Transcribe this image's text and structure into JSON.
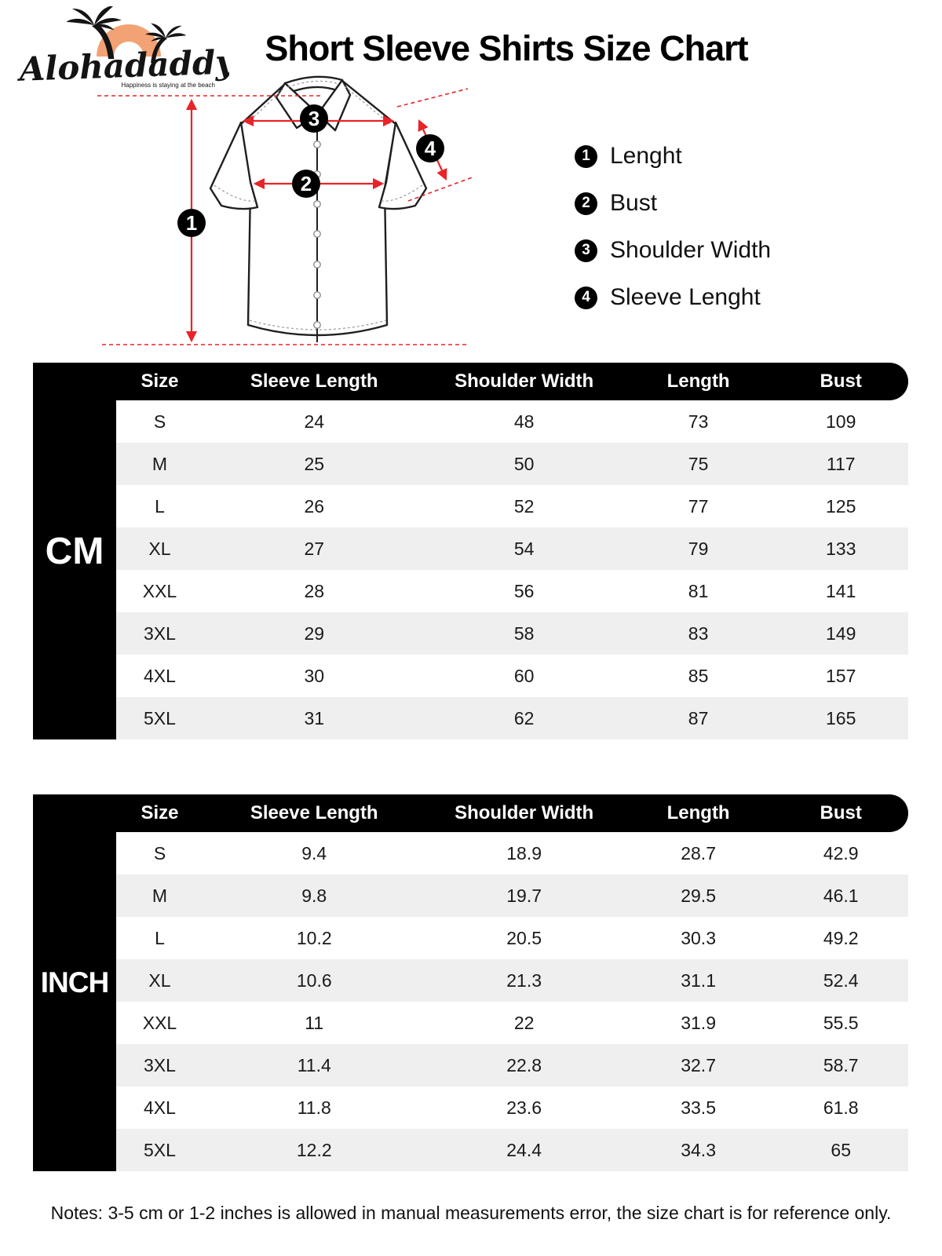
{
  "logo": {
    "brand": "Alohadaddy",
    "tagline": "Happiness is staying at the beach"
  },
  "page": {
    "title": "Short Sleeve Shirts Size Chart",
    "notes": "Notes: 3-5 cm or 1-2 inches is allowed in manual measurements error, the size chart is for reference only."
  },
  "diagram": {
    "markers": {
      "m1": "1",
      "m2": "2",
      "m3": "3",
      "m4": "4"
    }
  },
  "legend": {
    "items": [
      {
        "num": "1",
        "label": "Lenght"
      },
      {
        "num": "2",
        "label": "Bust"
      },
      {
        "num": "3",
        "label": "Shoulder Width"
      },
      {
        "num": "4",
        "label": "Sleeve Lenght"
      }
    ]
  },
  "tables": [
    {
      "unit": "CM",
      "columns": [
        "Size",
        "Sleeve Length",
        "Shoulder Width",
        "Length",
        "Bust"
      ],
      "rows": [
        [
          "S",
          "24",
          "48",
          "73",
          "109"
        ],
        [
          "M",
          "25",
          "50",
          "75",
          "117"
        ],
        [
          "L",
          "26",
          "52",
          "77",
          "125"
        ],
        [
          "XL",
          "27",
          "54",
          "79",
          "133"
        ],
        [
          "XXL",
          "28",
          "56",
          "81",
          "141"
        ],
        [
          "3XL",
          "29",
          "58",
          "83",
          "149"
        ],
        [
          "4XL",
          "30",
          "60",
          "85",
          "157"
        ],
        [
          "5XL",
          "31",
          "62",
          "87",
          "165"
        ]
      ]
    },
    {
      "unit": "INCH",
      "columns": [
        "Size",
        "Sleeve Length",
        "Shoulder Width",
        "Length",
        "Bust"
      ],
      "rows": [
        [
          "S",
          "9.4",
          "18.9",
          "28.7",
          "42.9"
        ],
        [
          "M",
          "9.8",
          "19.7",
          "29.5",
          "46.1"
        ],
        [
          "L",
          "10.2",
          "20.5",
          "30.3",
          "49.2"
        ],
        [
          "XL",
          "10.6",
          "21.3",
          "31.1",
          "52.4"
        ],
        [
          "XXL",
          "11",
          "22",
          "31.9",
          "55.5"
        ],
        [
          "3XL",
          "11.4",
          "22.8",
          "32.7",
          "58.7"
        ],
        [
          "4XL",
          "11.8",
          "23.6",
          "33.5",
          "61.8"
        ],
        [
          "5XL",
          "12.2",
          "24.4",
          "34.3",
          "65"
        ]
      ]
    }
  ],
  "colors": {
    "accent_red": "#e82429",
    "row_stripe": "#efefef",
    "logo_orange": "#f2a274",
    "ink": "#000000"
  }
}
